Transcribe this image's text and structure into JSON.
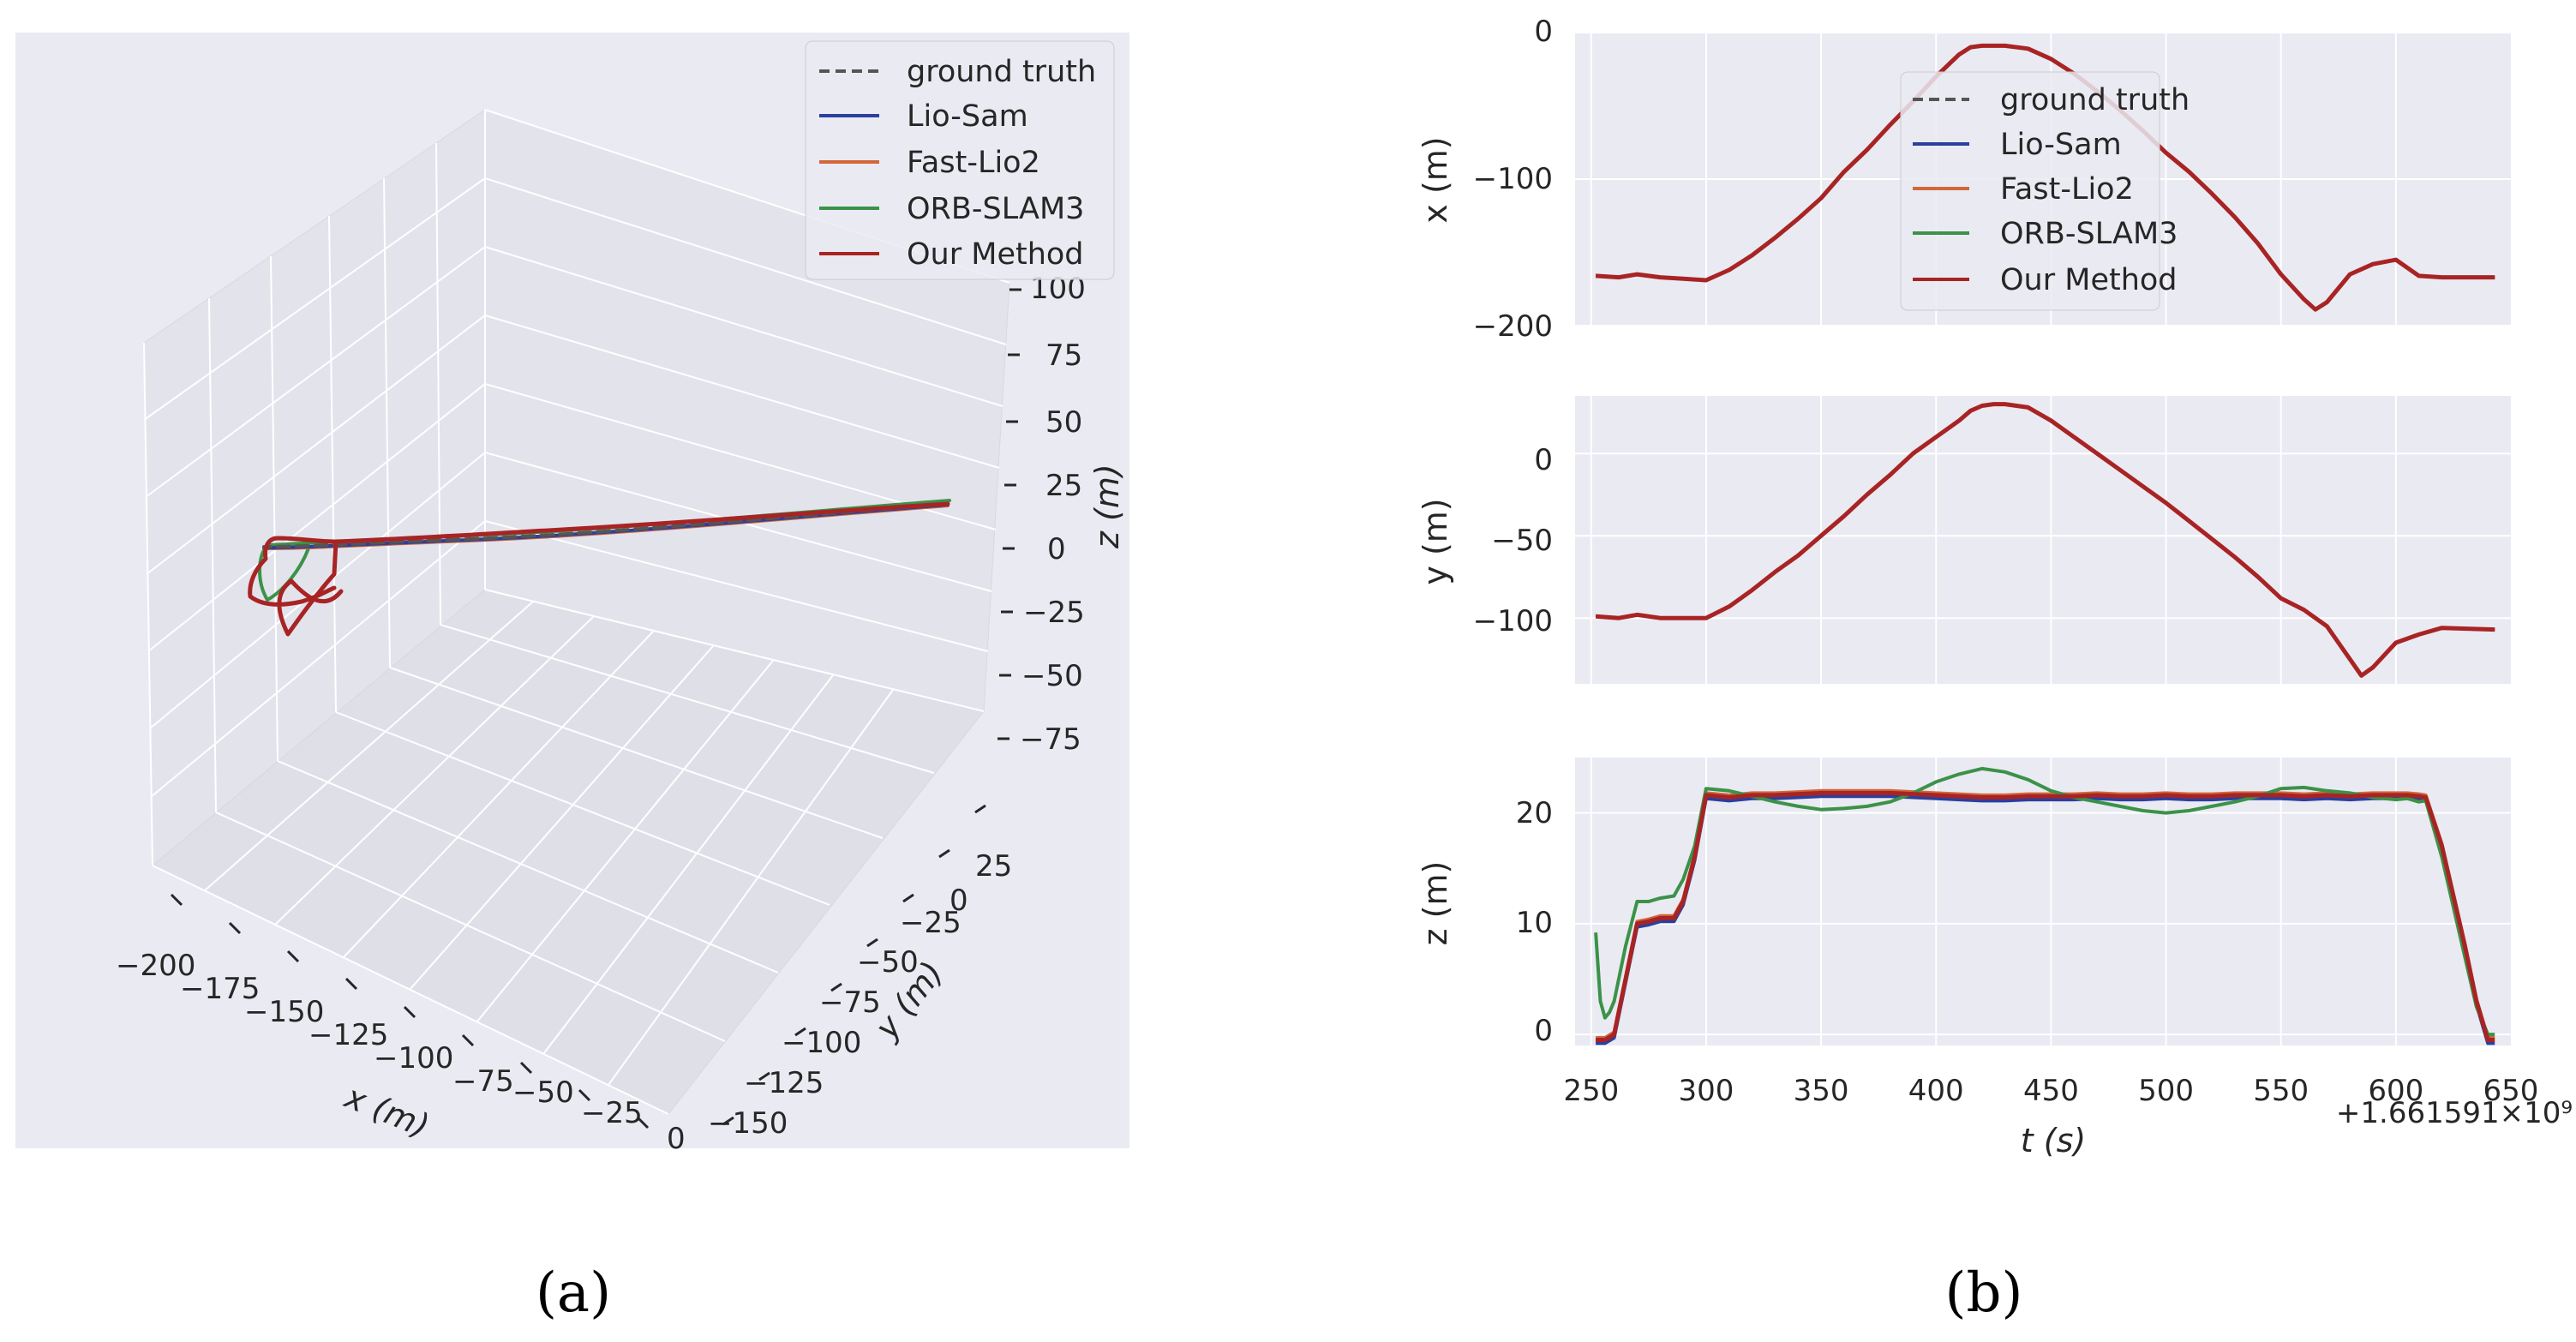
{
  "panels": {
    "a": "(a)",
    "b": "(b)"
  },
  "legend": [
    "ground truth",
    "Lio-Sam",
    "Fast-Lio2",
    "ORB-SLAM3",
    "Our Method"
  ],
  "colors": {
    "ground truth": "#555555",
    "Lio-Sam": "#2b3f9e",
    "Fast-Lio2": "#d2673a",
    "ORB-SLAM3": "#3b9248",
    "Our Method": "#a82424",
    "axes_bg": "#eaeaf2",
    "grid": "#ffffff"
  },
  "chart_data": [
    {
      "type": "line",
      "projection": "3d",
      "xlabel": "x (m)",
      "ylabel": "y (m)",
      "zlabel": "z (m)",
      "xticks": [
        "−200",
        "−175",
        "−150",
        "−125",
        "−100",
        "−75",
        "−50",
        "−25",
        "0"
      ],
      "yticks": [
        "−150",
        "−125",
        "−100",
        "−75",
        "−50",
        "−25",
        "0",
        "25"
      ],
      "zticks": [
        "−75",
        "−50",
        "−25",
        "0",
        "25",
        "50",
        "75",
        "100"
      ],
      "xlim": [
        -200,
        0
      ],
      "ylim": [
        -150,
        25
      ],
      "zlim": [
        -75,
        100
      ],
      "grid": true,
      "legend_position": "top-right",
      "series_names": [
        "ground truth",
        "Lio-Sam",
        "Fast-Lio2",
        "ORB-SLAM3",
        "Our Method"
      ]
    },
    {
      "type": "line",
      "ylabel": "x (m)",
      "ylim": [
        -200,
        0
      ],
      "yticks": [
        "0",
        "−100",
        "−200"
      ],
      "grid": true,
      "legend_position": "top-center",
      "t": [
        252,
        262,
        270,
        280,
        290,
        300,
        310,
        320,
        330,
        340,
        350,
        360,
        370,
        380,
        390,
        400,
        410,
        415,
        420,
        425,
        430,
        440,
        450,
        460,
        470,
        480,
        490,
        500,
        510,
        520,
        530,
        540,
        550,
        560,
        565,
        570,
        580,
        590,
        600,
        610,
        620,
        643
      ],
      "x": [
        -166,
        -167,
        -165,
        -167,
        -168,
        -169,
        -162,
        -152,
        -140,
        -127,
        -113,
        -95,
        -80,
        -63,
        -47,
        -30,
        -15,
        -10,
        -9,
        -9,
        -9,
        -11,
        -18,
        -28,
        -40,
        -53,
        -67,
        -82,
        -95,
        -110,
        -126,
        -144,
        -165,
        -182,
        -189,
        -184,
        -165,
        -158,
        -155,
        -166,
        -167,
        -167
      ],
      "series": [
        {
          "name": "ground truth",
          "offset": 0
        },
        {
          "name": "Lio-Sam",
          "offset": 0
        },
        {
          "name": "Fast-Lio2",
          "offset": 0
        },
        {
          "name": "ORB-SLAM3",
          "offset": 0
        },
        {
          "name": "Our Method",
          "offset": 0
        }
      ]
    },
    {
      "type": "line",
      "ylabel": "y (m)",
      "ylim": [
        -140,
        35
      ],
      "yticks": [
        "0",
        "−50",
        "−100"
      ],
      "grid": true,
      "t": [
        252,
        262,
        270,
        280,
        290,
        300,
        310,
        320,
        330,
        340,
        350,
        360,
        370,
        380,
        390,
        400,
        410,
        415,
        420,
        425,
        430,
        440,
        450,
        460,
        470,
        480,
        490,
        500,
        510,
        520,
        530,
        540,
        550,
        560,
        570,
        575,
        580,
        585,
        590,
        600,
        610,
        620,
        643
      ],
      "x": [
        -99,
        -100,
        -98,
        -100,
        -100,
        -100,
        -93,
        -83,
        -72,
        -62,
        -50,
        -38,
        -25,
        -13,
        0,
        10,
        20,
        26,
        29,
        30,
        30,
        28,
        20,
        10,
        0,
        -10,
        -20,
        -30,
        -41,
        -52,
        -63,
        -75,
        -88,
        -95,
        -105,
        -115,
        -125,
        -135,
        -130,
        -115,
        -110,
        -106,
        -107
      ],
      "series": [
        {
          "name": "ground truth",
          "offset": 0
        },
        {
          "name": "Lio-Sam",
          "offset": 0
        },
        {
          "name": "Fast-Lio2",
          "offset": 0
        },
        {
          "name": "ORB-SLAM3",
          "offset": 0
        },
        {
          "name": "Our Method",
          "offset": 0
        }
      ]
    },
    {
      "type": "line",
      "xlabel": "t (s)",
      "ylabel": "z (m)",
      "ylim": [
        -1,
        25
      ],
      "yticks": [
        "20",
        "10",
        "0"
      ],
      "xlim": [
        243,
        650
      ],
      "xticks": [
        "250",
        "300",
        "350",
        "400",
        "450",
        "500",
        "550",
        "600",
        "650"
      ],
      "x_offset_label": "+1.661591×10⁹",
      "grid": true,
      "t": [
        252,
        256,
        260,
        265,
        270,
        275,
        280,
        286,
        290,
        295,
        300,
        310,
        320,
        330,
        340,
        350,
        360,
        370,
        380,
        390,
        400,
        410,
        420,
        430,
        440,
        450,
        460,
        470,
        480,
        490,
        500,
        510,
        520,
        530,
        540,
        550,
        560,
        570,
        580,
        590,
        600,
        605,
        610,
        613,
        620,
        630,
        635,
        640,
        643
      ],
      "x": [
        -0.5,
        -0.5,
        0,
        5,
        10,
        10.2,
        10.5,
        10.5,
        12,
        16,
        21.6,
        21.4,
        21.6,
        21.6,
        21.7,
        21.8,
        21.8,
        21.8,
        21.8,
        21.7,
        21.6,
        21.5,
        21.4,
        21.4,
        21.5,
        21.5,
        21.5,
        21.6,
        21.5,
        21.5,
        21.6,
        21.5,
        21.5,
        21.6,
        21.6,
        21.6,
        21.5,
        21.6,
        21.5,
        21.6,
        21.6,
        21.6,
        21.5,
        21.4,
        17,
        8,
        3,
        -0.5,
        -0.5
      ],
      "series": [
        {
          "name": "ground truth",
          "offset": 0
        },
        {
          "name": "Lio-Sam",
          "offset": -0.3
        },
        {
          "name": "Fast-Lio2",
          "offset": 0.2
        },
        {
          "name": "Our Method",
          "offset": 0
        }
      ],
      "orb_slam3": {
        "t": [
          252,
          254,
          256,
          258,
          260,
          265,
          270,
          275,
          280,
          286,
          290,
          295,
          300,
          310,
          320,
          330,
          340,
          350,
          360,
          370,
          380,
          390,
          400,
          410,
          420,
          430,
          440,
          450,
          460,
          470,
          480,
          490,
          500,
          510,
          520,
          530,
          540,
          550,
          560,
          570,
          580,
          590,
          600,
          605,
          610,
          613,
          620,
          630,
          635,
          640,
          643
        ],
        "z": [
          9.2,
          3,
          1.5,
          2,
          3,
          8,
          12,
          12,
          12.3,
          12.5,
          14,
          17,
          22.2,
          22,
          21.5,
          21,
          20.6,
          20.3,
          20.4,
          20.6,
          21,
          21.8,
          22.8,
          23.5,
          24,
          23.7,
          23,
          22,
          21.4,
          21,
          20.6,
          20.2,
          20,
          20.2,
          20.6,
          21,
          21.5,
          22.2,
          22.3,
          22,
          21.8,
          21.4,
          21.2,
          21.3,
          21,
          21.1,
          16,
          7,
          2.5,
          0,
          0
        ]
      }
    }
  ]
}
